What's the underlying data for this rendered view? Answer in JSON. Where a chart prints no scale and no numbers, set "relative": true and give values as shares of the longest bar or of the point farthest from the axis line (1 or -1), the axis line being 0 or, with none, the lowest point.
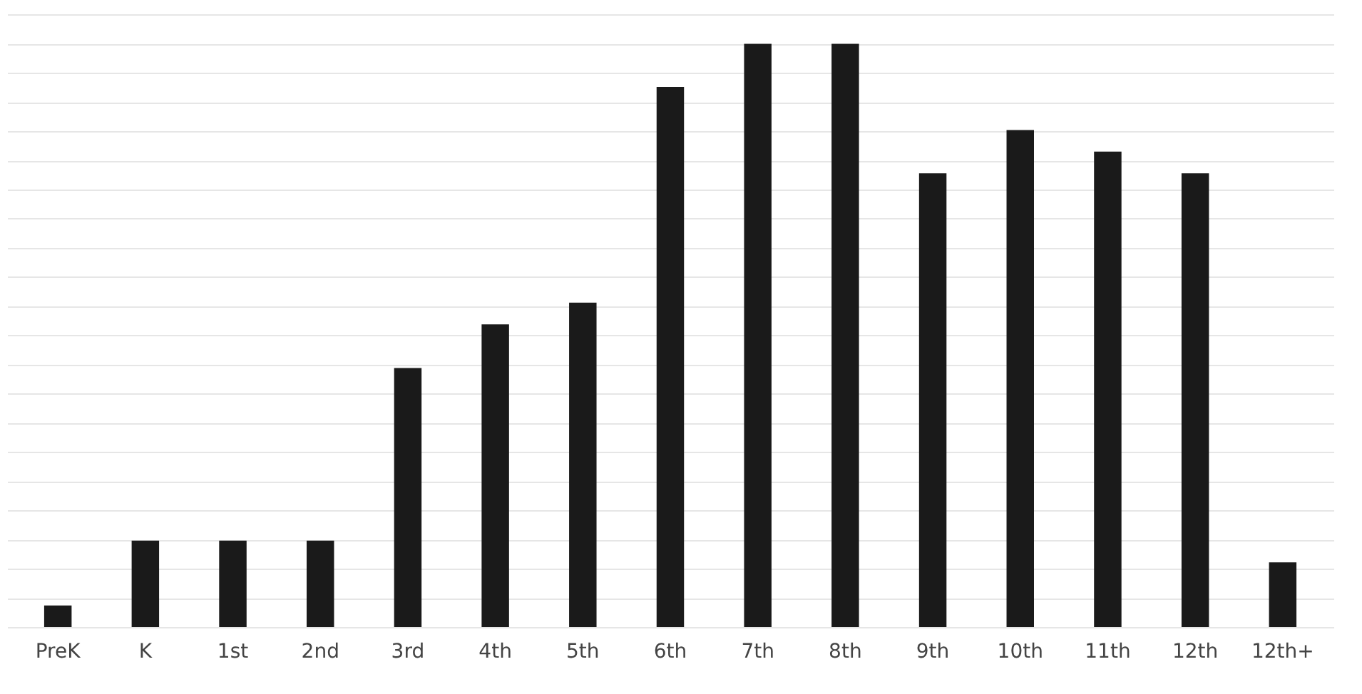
{
  "chart_data": {
    "type": "bar",
    "relative": true,
    "grid": true,
    "color": "#1a1a1a",
    "categories": [
      "PreK",
      "K",
      "1st",
      "2nd",
      "3rd",
      "4th",
      "5th",
      "6th",
      "7th",
      "8th",
      "9th",
      "10th",
      "11th",
      "12th",
      "12th+"
    ],
    "values": [
      0.037,
      0.148,
      0.148,
      0.148,
      0.444,
      0.519,
      0.556,
      0.926,
      1,
      1,
      0.778,
      0.852,
      0.815,
      0.778,
      0.111
    ]
  }
}
